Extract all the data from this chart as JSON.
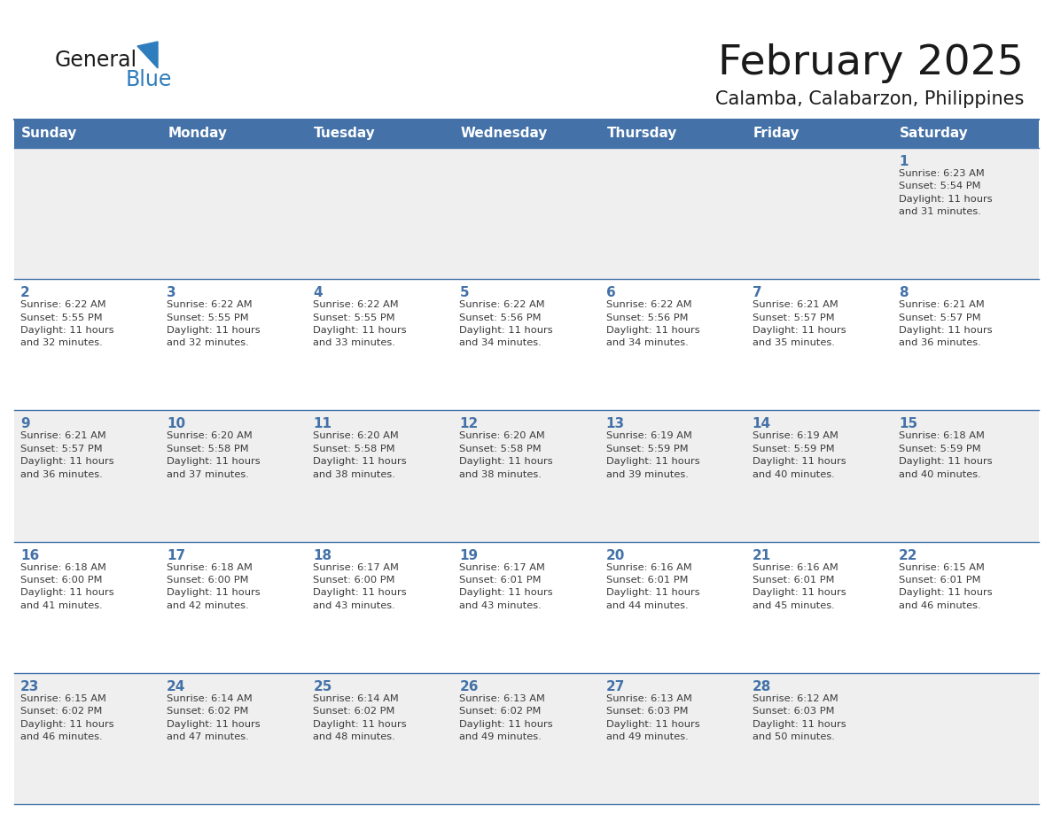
{
  "title": "February 2025",
  "subtitle": "Calamba, Calabarzon, Philippines",
  "header_bg": "#4472A8",
  "header_text": "#FFFFFF",
  "day_names": [
    "Sunday",
    "Monday",
    "Tuesday",
    "Wednesday",
    "Thursday",
    "Friday",
    "Saturday"
  ],
  "row_bg_odd": "#EFEFEF",
  "row_bg_even": "#FFFFFF",
  "cell_border_color": "#4472A8",
  "date_color": "#4472A8",
  "info_color": "#3a3a3a",
  "title_color": "#1a1a1a",
  "subtitle_color": "#1a1a1a",
  "logo_general_color": "#1a1a1a",
  "logo_blue_color": "#2E7DBE",
  "logo_triangle_color": "#2E7DBE",
  "weeks": [
    [
      {
        "day": null,
        "info": null
      },
      {
        "day": null,
        "info": null
      },
      {
        "day": null,
        "info": null
      },
      {
        "day": null,
        "info": null
      },
      {
        "day": null,
        "info": null
      },
      {
        "day": null,
        "info": null
      },
      {
        "day": 1,
        "info": "Sunrise: 6:23 AM\nSunset: 5:54 PM\nDaylight: 11 hours\nand 31 minutes."
      }
    ],
    [
      {
        "day": 2,
        "info": "Sunrise: 6:22 AM\nSunset: 5:55 PM\nDaylight: 11 hours\nand 32 minutes."
      },
      {
        "day": 3,
        "info": "Sunrise: 6:22 AM\nSunset: 5:55 PM\nDaylight: 11 hours\nand 32 minutes."
      },
      {
        "day": 4,
        "info": "Sunrise: 6:22 AM\nSunset: 5:55 PM\nDaylight: 11 hours\nand 33 minutes."
      },
      {
        "day": 5,
        "info": "Sunrise: 6:22 AM\nSunset: 5:56 PM\nDaylight: 11 hours\nand 34 minutes."
      },
      {
        "day": 6,
        "info": "Sunrise: 6:22 AM\nSunset: 5:56 PM\nDaylight: 11 hours\nand 34 minutes."
      },
      {
        "day": 7,
        "info": "Sunrise: 6:21 AM\nSunset: 5:57 PM\nDaylight: 11 hours\nand 35 minutes."
      },
      {
        "day": 8,
        "info": "Sunrise: 6:21 AM\nSunset: 5:57 PM\nDaylight: 11 hours\nand 36 minutes."
      }
    ],
    [
      {
        "day": 9,
        "info": "Sunrise: 6:21 AM\nSunset: 5:57 PM\nDaylight: 11 hours\nand 36 minutes."
      },
      {
        "day": 10,
        "info": "Sunrise: 6:20 AM\nSunset: 5:58 PM\nDaylight: 11 hours\nand 37 minutes."
      },
      {
        "day": 11,
        "info": "Sunrise: 6:20 AM\nSunset: 5:58 PM\nDaylight: 11 hours\nand 38 minutes."
      },
      {
        "day": 12,
        "info": "Sunrise: 6:20 AM\nSunset: 5:58 PM\nDaylight: 11 hours\nand 38 minutes."
      },
      {
        "day": 13,
        "info": "Sunrise: 6:19 AM\nSunset: 5:59 PM\nDaylight: 11 hours\nand 39 minutes."
      },
      {
        "day": 14,
        "info": "Sunrise: 6:19 AM\nSunset: 5:59 PM\nDaylight: 11 hours\nand 40 minutes."
      },
      {
        "day": 15,
        "info": "Sunrise: 6:18 AM\nSunset: 5:59 PM\nDaylight: 11 hours\nand 40 minutes."
      }
    ],
    [
      {
        "day": 16,
        "info": "Sunrise: 6:18 AM\nSunset: 6:00 PM\nDaylight: 11 hours\nand 41 minutes."
      },
      {
        "day": 17,
        "info": "Sunrise: 6:18 AM\nSunset: 6:00 PM\nDaylight: 11 hours\nand 42 minutes."
      },
      {
        "day": 18,
        "info": "Sunrise: 6:17 AM\nSunset: 6:00 PM\nDaylight: 11 hours\nand 43 minutes."
      },
      {
        "day": 19,
        "info": "Sunrise: 6:17 AM\nSunset: 6:01 PM\nDaylight: 11 hours\nand 43 minutes."
      },
      {
        "day": 20,
        "info": "Sunrise: 6:16 AM\nSunset: 6:01 PM\nDaylight: 11 hours\nand 44 minutes."
      },
      {
        "day": 21,
        "info": "Sunrise: 6:16 AM\nSunset: 6:01 PM\nDaylight: 11 hours\nand 45 minutes."
      },
      {
        "day": 22,
        "info": "Sunrise: 6:15 AM\nSunset: 6:01 PM\nDaylight: 11 hours\nand 46 minutes."
      }
    ],
    [
      {
        "day": 23,
        "info": "Sunrise: 6:15 AM\nSunset: 6:02 PM\nDaylight: 11 hours\nand 46 minutes."
      },
      {
        "day": 24,
        "info": "Sunrise: 6:14 AM\nSunset: 6:02 PM\nDaylight: 11 hours\nand 47 minutes."
      },
      {
        "day": 25,
        "info": "Sunrise: 6:14 AM\nSunset: 6:02 PM\nDaylight: 11 hours\nand 48 minutes."
      },
      {
        "day": 26,
        "info": "Sunrise: 6:13 AM\nSunset: 6:02 PM\nDaylight: 11 hours\nand 49 minutes."
      },
      {
        "day": 27,
        "info": "Sunrise: 6:13 AM\nSunset: 6:03 PM\nDaylight: 11 hours\nand 49 minutes."
      },
      {
        "day": 28,
        "info": "Sunrise: 6:12 AM\nSunset: 6:03 PM\nDaylight: 11 hours\nand 50 minutes."
      },
      {
        "day": null,
        "info": null
      }
    ]
  ]
}
